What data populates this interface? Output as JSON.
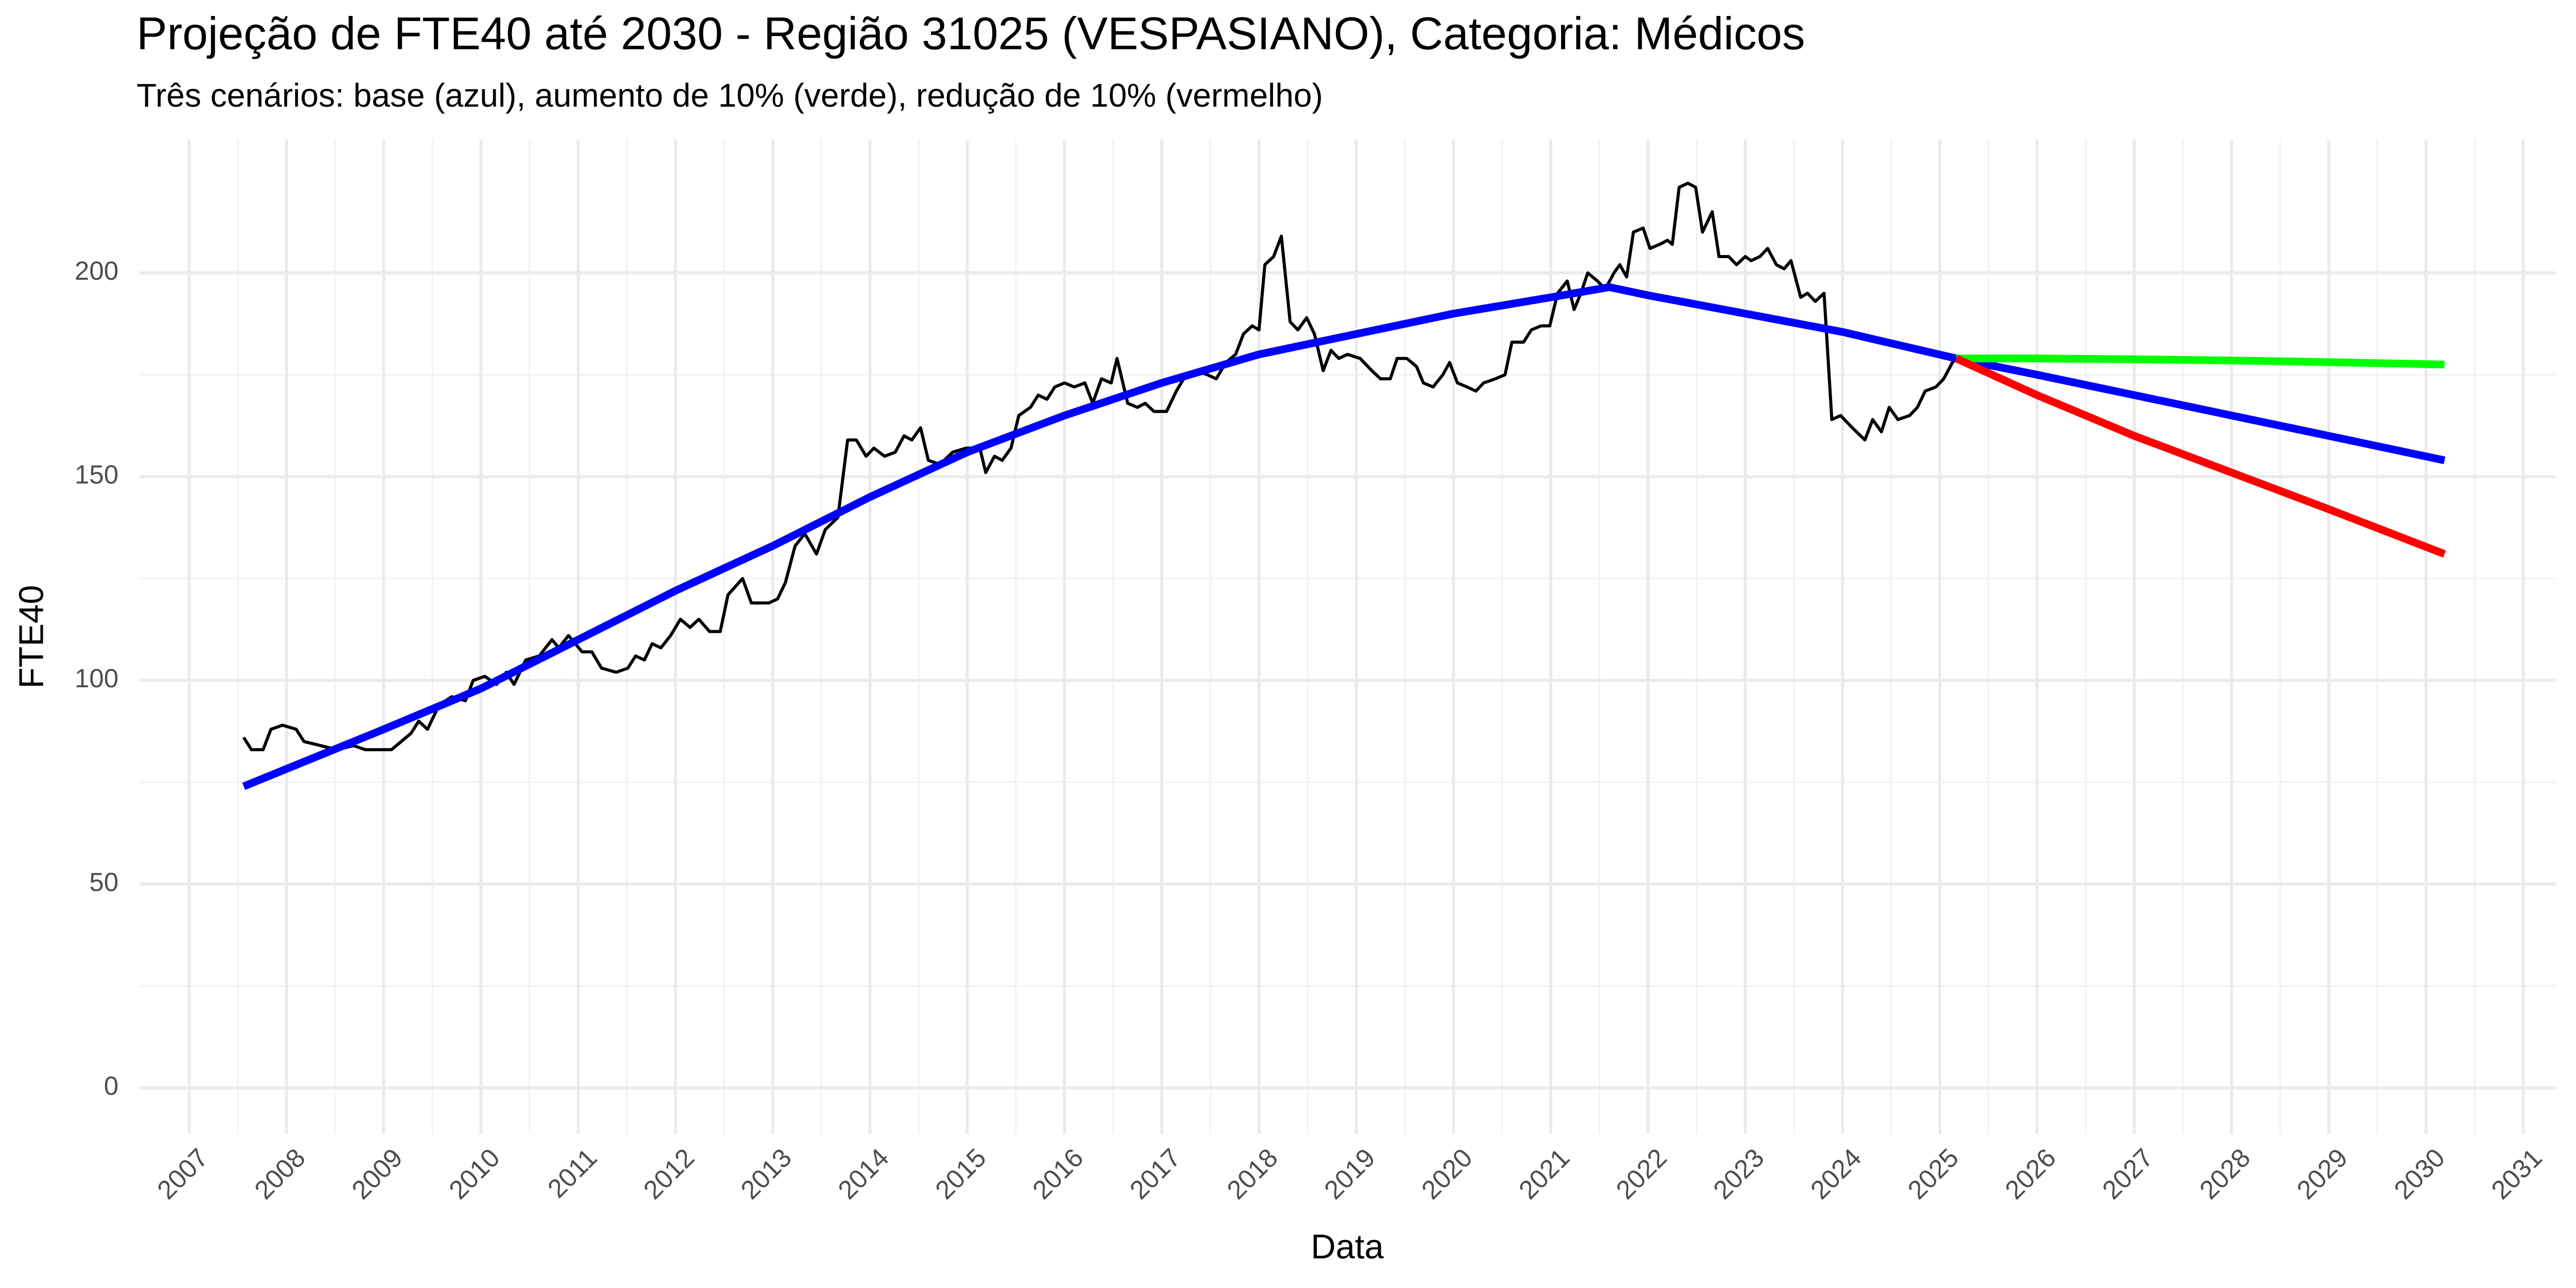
{
  "chart_data": {
    "type": "line",
    "title": "Projeção de FTE40 até 2030 - Região 31025 (VESPASIANO), Categoria: Médicos",
    "subtitle": "Três cenários: base (azul), aumento de 10% (verde), redução de 10% (vermelho)",
    "x_label": "Data",
    "y_label": "FTE40",
    "xlim": [
      2006.49,
      2031.33
    ],
    "ylim": [
      -11.3,
      232.7
    ],
    "xticks": [
      2007,
      2008,
      2009,
      2010,
      2011,
      2012,
      2013,
      2014,
      2015,
      2016,
      2017,
      2018,
      2019,
      2020,
      2021,
      2022,
      2023,
      2024,
      2025,
      2026,
      2027,
      2028,
      2029,
      2030,
      2031
    ],
    "yticks": [
      0,
      50,
      100,
      150,
      200
    ],
    "grid": true,
    "series": [
      {
        "color": "#000000",
        "width": 6,
        "x": [
          2007.56,
          2007.64,
          2007.76,
          2007.84,
          2007.96,
          2008.1,
          2008.18,
          2008.35,
          2008.52,
          2008.69,
          2008.81,
          2009.08,
          2009.28,
          2009.36,
          2009.45,
          2009.57,
          2009.7,
          2009.84,
          2009.92,
          2010.04,
          2010.16,
          2010.26,
          2010.34,
          2010.46,
          2010.6,
          2010.73,
          2010.8,
          2010.9,
          2011.04,
          2011.14,
          2011.24,
          2011.39,
          2011.51,
          2011.59,
          2011.68,
          2011.76,
          2011.85,
          2011.95,
          2012.05,
          2012.15,
          2012.24,
          2012.35,
          2012.46,
          2012.54,
          2012.69,
          2012.78,
          2012.96,
          2013.05,
          2013.13,
          2013.23,
          2013.33,
          2013.45,
          2013.54,
          2013.67,
          2013.77,
          2013.86,
          2013.96,
          2014.04,
          2014.15,
          2014.26,
          2014.35,
          2014.43,
          2014.52,
          2014.6,
          2014.72,
          2014.85,
          2014.99,
          2015.13,
          2015.19,
          2015.28,
          2015.36,
          2015.45,
          2015.53,
          2015.65,
          2015.73,
          2015.82,
          2015.9,
          2016.0,
          2016.1,
          2016.21,
          2016.29,
          2016.38,
          2016.48,
          2016.54,
          2016.65,
          2016.75,
          2016.83,
          2016.92,
          2017.05,
          2017.15,
          2017.25,
          2017.35,
          2017.47,
          2017.56,
          2017.66,
          2017.76,
          2017.84,
          2017.93,
          2018.0,
          2018.06,
          2018.15,
          2018.23,
          2018.32,
          2018.4,
          2018.49,
          2018.57,
          2018.66,
          2018.74,
          2018.82,
          2018.91,
          2019.04,
          2019.16,
          2019.25,
          2019.35,
          2019.42,
          2019.52,
          2019.62,
          2019.69,
          2019.79,
          2019.89,
          2019.96,
          2020.04,
          2020.14,
          2020.23,
          2020.31,
          2020.43,
          2020.53,
          2020.6,
          2020.72,
          2020.8,
          2020.9,
          2020.99,
          2021.07,
          2021.17,
          2021.24,
          2021.31,
          2021.38,
          2021.48,
          2021.56,
          2021.65,
          2021.71,
          2021.78,
          2021.85,
          2021.95,
          2022.02,
          2022.12,
          2022.2,
          2022.25,
          2022.32,
          2022.41,
          2022.49,
          2022.56,
          2022.66,
          2022.73,
          2022.83,
          2022.91,
          2023.0,
          2023.06,
          2023.15,
          2023.23,
          2023.32,
          2023.4,
          2023.47,
          2023.57,
          2023.64,
          2023.72,
          2023.81,
          2023.89,
          2023.98,
          2024.1,
          2024.23,
          2024.31,
          2024.4,
          2024.48,
          2024.57,
          2024.69,
          2024.77,
          2024.85,
          2024.96,
          2025.04,
          2025.13,
          2025.17
        ],
        "values": [
          86,
          83,
          83,
          88,
          89,
          88,
          85,
          84,
          83,
          84,
          83,
          83,
          87,
          90,
          88,
          94,
          96,
          95,
          100,
          101,
          99,
          102,
          99,
          105,
          106,
          110,
          108,
          111,
          107,
          107,
          103,
          102,
          103,
          106,
          105,
          109,
          108,
          111,
          115,
          113,
          115,
          112,
          112,
          121,
          125,
          119,
          119,
          120,
          124,
          133,
          136,
          131,
          137,
          140,
          159,
          159,
          155,
          157,
          155,
          156,
          160,
          159,
          162,
          154,
          153,
          156,
          157,
          157,
          151,
          155,
          154,
          157,
          165,
          167,
          170,
          169,
          172,
          173,
          172,
          173,
          168,
          174,
          173,
          179,
          168,
          167,
          168,
          166,
          166,
          171,
          175,
          176,
          175,
          174,
          178,
          180,
          185,
          187,
          186,
          202,
          204,
          209,
          188,
          186,
          189,
          185,
          176,
          181,
          179,
          180,
          179,
          176,
          174,
          174,
          179,
          179,
          177,
          173,
          172,
          175,
          178,
          173,
          172,
          171,
          173,
          174,
          175,
          183,
          183,
          186,
          187,
          187,
          195,
          198,
          191,
          195,
          200,
          198,
          196,
          200,
          202,
          199,
          210,
          211,
          206,
          207,
          208,
          207,
          221,
          222,
          221,
          210,
          215,
          204,
          204,
          202,
          204,
          203,
          204,
          206,
          202,
          201,
          203,
          194,
          195,
          193,
          195,
          164,
          165,
          162,
          159,
          164,
          161,
          167,
          164,
          165,
          167,
          171,
          172,
          174,
          178,
          179
        ]
      },
      {
        "color": "#0000ff",
        "width": 15,
        "x": [
          2007.56,
          2009,
          2010,
          2011,
          2012,
          2013,
          2014,
          2015,
          2016,
          2017,
          2018,
          2019,
          2020,
          2021,
          2021.6,
          2022,
          2023,
          2024,
          2025.17,
          2026,
          2027,
          2028,
          2029,
          2030.19
        ],
        "values": [
          74,
          88,
          98,
          110,
          122,
          133,
          145,
          156,
          165,
          173,
          180,
          185,
          190,
          194,
          196.5,
          194.5,
          190,
          185.5,
          179,
          175,
          170,
          165,
          160,
          154
        ]
      },
      {
        "color": "#00ff00",
        "width": 15,
        "x": [
          2025.17,
          2026,
          2027,
          2028,
          2029,
          2030.19
        ],
        "values": [
          179,
          179,
          178.8,
          178.5,
          178.1,
          177.5
        ]
      },
      {
        "color": "#ff0000",
        "width": 15,
        "x": [
          2025.17,
          2026,
          2027,
          2028,
          2029,
          2030.19
        ],
        "values": [
          179,
          170,
          160,
          151,
          142,
          131
        ]
      }
    ]
  }
}
